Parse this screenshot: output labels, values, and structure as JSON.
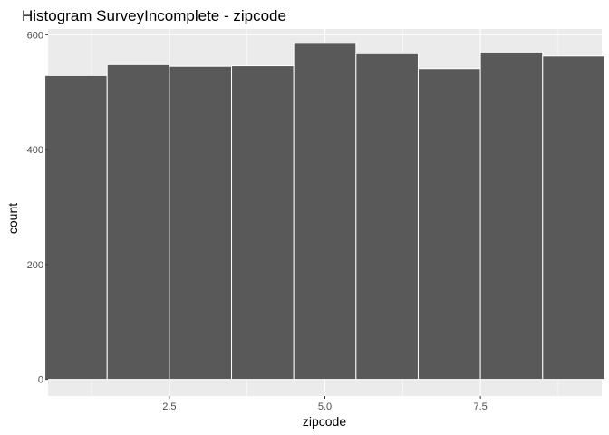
{
  "chart_data": {
    "type": "bar",
    "title": "Histogram SurveyIncomplete - zipcode",
    "xlabel": "zipcode",
    "ylabel": "count",
    "x_ticks": [
      2.5,
      5.0,
      7.5
    ],
    "x_tick_labels": [
      "2.5",
      "5.0",
      "7.5"
    ],
    "y_ticks": [
      0,
      200,
      400,
      600
    ],
    "y_tick_labels": [
      "0",
      "200",
      "400",
      "600"
    ],
    "xlim": [
      0.55,
      9.45
    ],
    "ylim": [
      -29,
      610
    ],
    "grid": true,
    "bin_width": 1,
    "bins": [
      {
        "x": 1,
        "count": 529
      },
      {
        "x": 2,
        "count": 548
      },
      {
        "x": 3,
        "count": 545
      },
      {
        "x": 4,
        "count": 546
      },
      {
        "x": 5,
        "count": 585
      },
      {
        "x": 6,
        "count": 567
      },
      {
        "x": 7,
        "count": 541
      },
      {
        "x": 8,
        "count": 570
      },
      {
        "x": 9,
        "count": 563
      }
    ],
    "colors": {
      "bar_fill": "#595959",
      "bar_outline": "#ffffff",
      "panel_background": "#ebebeb",
      "grid": "#ffffff"
    }
  }
}
